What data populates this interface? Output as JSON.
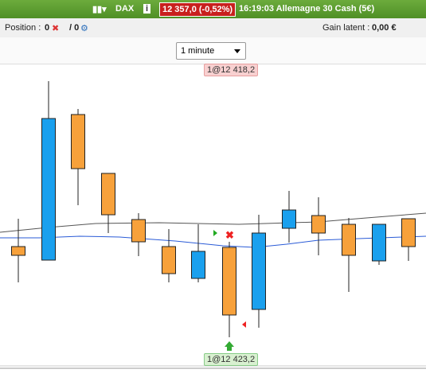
{
  "header": {
    "instrument": "DAX",
    "price": "12 357,0 (-0,52%)",
    "session": "16:19:03 Allemagne 30 Cash (5€)"
  },
  "toolbar": {
    "position_label": "Position :",
    "position_value": "0",
    "orders_value": "/ 0",
    "gain_label": "Gain latent :",
    "gain_value": "0,00 €"
  },
  "timeframe": "1 minute",
  "orders": {
    "sell": "1@12 418,2",
    "buy": "1@12 423,2"
  }
}
